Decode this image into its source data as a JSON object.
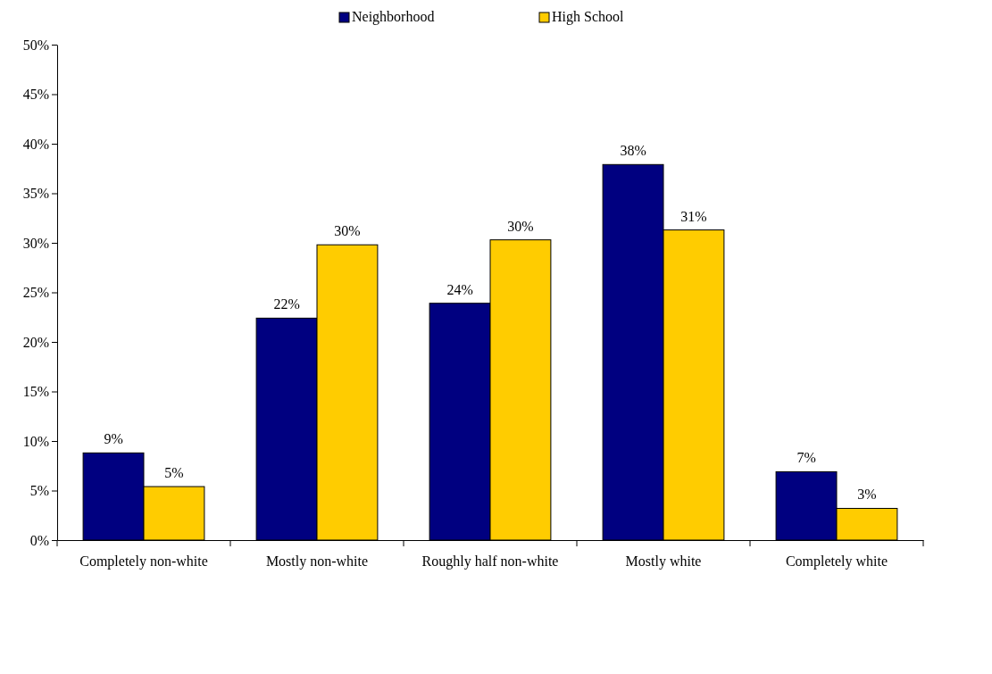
{
  "chart_data": {
    "type": "bar",
    "categories": [
      "Completely non-white",
      "Mostly non-white",
      "Roughly half non-white",
      "Mostly white",
      "Completely white"
    ],
    "series": [
      {
        "name": "Neighborhood",
        "color": "#000080",
        "values": [
          8.8,
          22.4,
          23.9,
          37.9,
          6.9
        ],
        "value_labels": [
          "9%",
          "22%",
          "24%",
          "38%",
          "7%"
        ]
      },
      {
        "name": "High School",
        "color": "#ffcc00",
        "values": [
          5.4,
          29.8,
          30.3,
          31.3,
          3.2
        ],
        "value_labels": [
          "5%",
          "30%",
          "30%",
          "31%",
          "3%"
        ]
      }
    ],
    "ylim": [
      0,
      50
    ],
    "yticks": [
      {
        "value": 0,
        "label": "0%"
      },
      {
        "value": 5,
        "label": "5%"
      },
      {
        "value": 10,
        "label": "10%"
      },
      {
        "value": 15,
        "label": "15%"
      },
      {
        "value": 20,
        "label": "20%"
      },
      {
        "value": 25,
        "label": "25%"
      },
      {
        "value": 30,
        "label": "30%"
      },
      {
        "value": 35,
        "label": "35%"
      },
      {
        "value": 40,
        "label": "40%"
      },
      {
        "value": 45,
        "label": "45%"
      },
      {
        "value": 50,
        "label": "50%"
      }
    ],
    "grid": false,
    "legend": "top"
  }
}
